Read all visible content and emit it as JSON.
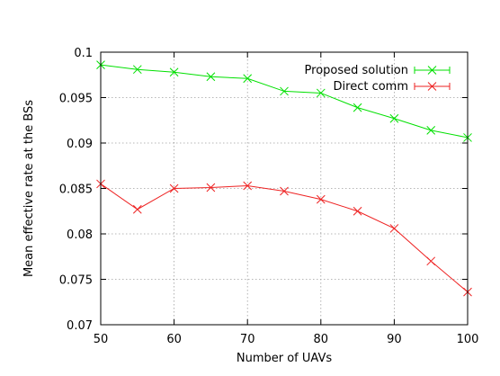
{
  "chart_data": {
    "type": "line",
    "title": "",
    "xlabel": "Number of UAVs",
    "ylabel": "Mean effective rate at the BSs",
    "xlim": [
      50,
      100
    ],
    "ylim": [
      0.07,
      0.1
    ],
    "x_ticks": [
      50,
      60,
      70,
      80,
      90,
      100
    ],
    "x_tick_labels": [
      "50",
      "60",
      "70",
      "80",
      "90",
      "100"
    ],
    "y_ticks": [
      0.07,
      0.075,
      0.08,
      0.085,
      0.09,
      0.095,
      0.1
    ],
    "y_tick_labels": [
      "0.07",
      "0.075",
      "0.08",
      "0.085",
      "0.09",
      "0.095",
      "0.1"
    ],
    "grid": true,
    "legend_position": "top-right",
    "x": [
      50,
      55,
      60,
      65,
      70,
      75,
      80,
      85,
      90,
      95,
      100
    ],
    "series": [
      {
        "name": "Proposed solution",
        "color": "#00e000",
        "marker": "x",
        "values": [
          0.0986,
          0.0981,
          0.0978,
          0.0973,
          0.0971,
          0.0957,
          0.0955,
          0.0939,
          0.0927,
          0.0914,
          0.0906
        ]
      },
      {
        "name": "Direct comm",
        "color": "#ee2222",
        "marker": "x",
        "values": [
          0.0855,
          0.0827,
          0.085,
          0.0851,
          0.0853,
          0.0847,
          0.0838,
          0.0825,
          0.0806,
          0.077,
          0.0736
        ]
      }
    ]
  }
}
